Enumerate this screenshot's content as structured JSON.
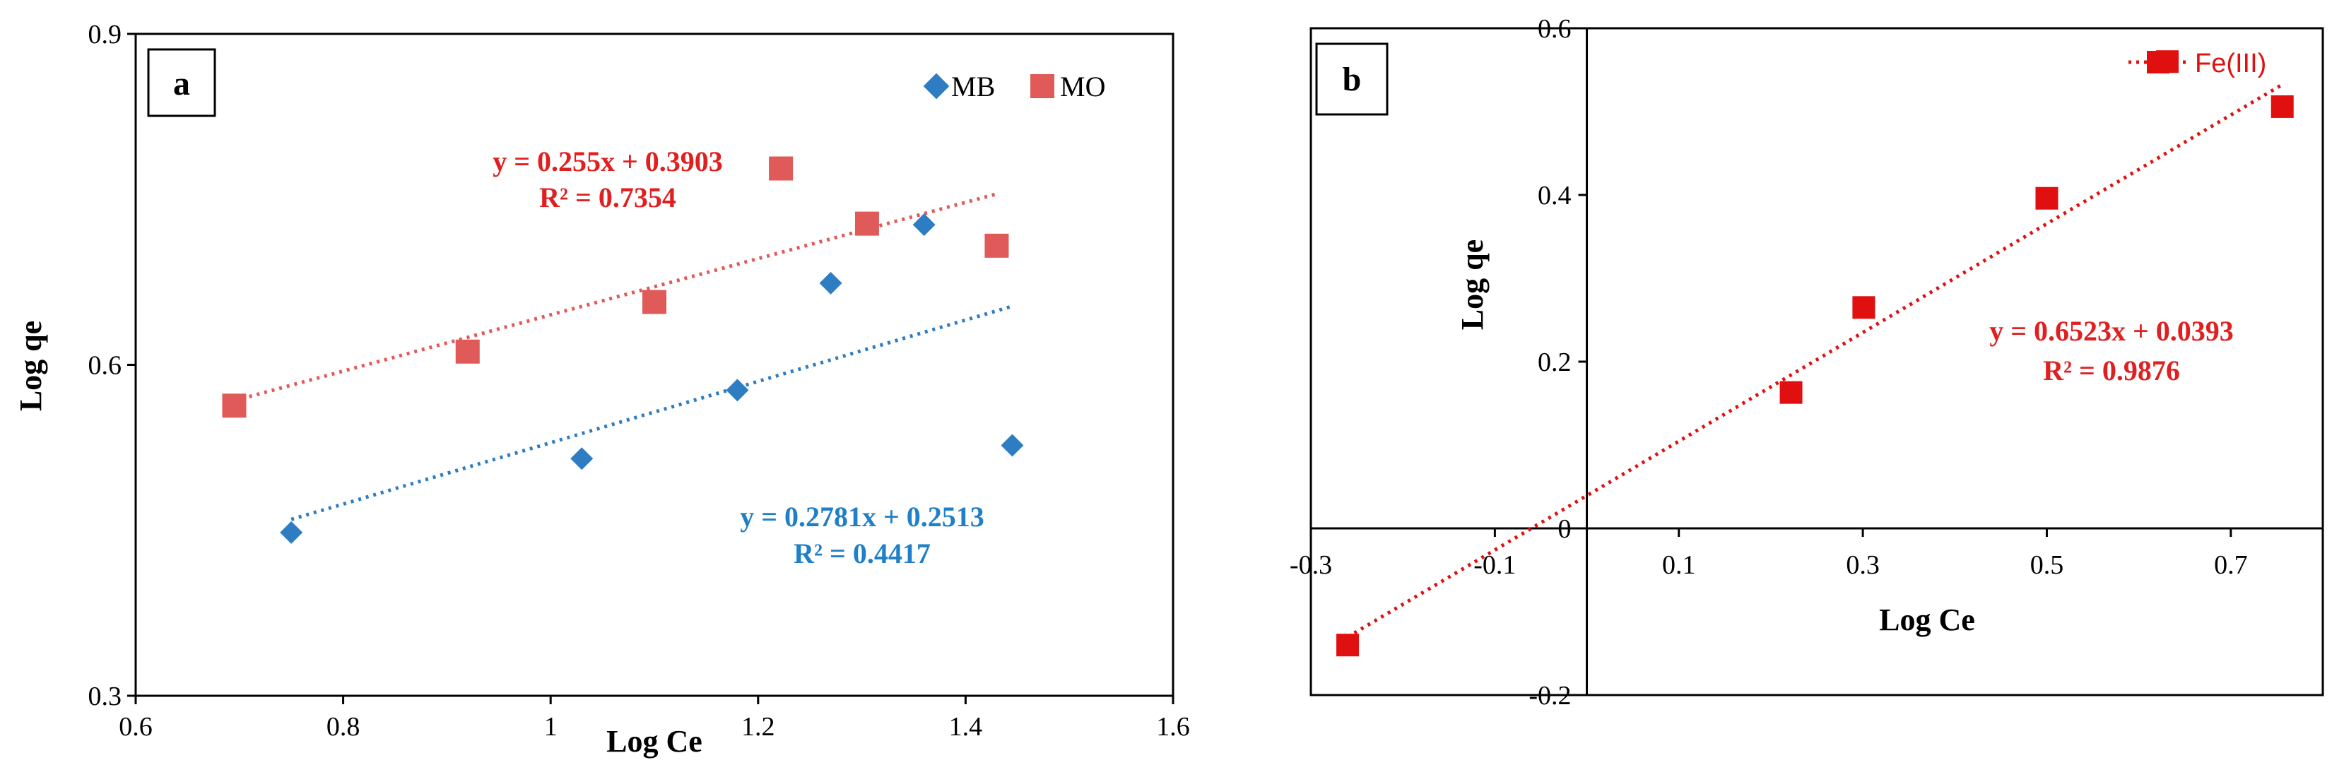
{
  "chart_data": [
    {
      "panel": "a",
      "type": "scatter",
      "xlabel": "Log Ce",
      "ylabel": "Log qe",
      "xlim": [
        0.6,
        1.6
      ],
      "ylim": [
        0.3,
        0.9
      ],
      "xticks": [
        0.6,
        0.8,
        1,
        1.2,
        1.4,
        1.6
      ],
      "xtick_labels": [
        "0.6",
        "0.8",
        "1",
        "1.2",
        "1.4",
        "1.6"
      ],
      "yticks": [
        0.3,
        0.6,
        0.9
      ],
      "ytick_labels": [
        "0.3",
        "0.6",
        "0.9"
      ],
      "legend_position": "top-right",
      "series": [
        {
          "name": "MB",
          "marker": "diamond",
          "color": "#2E7DC2",
          "x": [
            0.75,
            1.03,
            1.18,
            1.27,
            1.36,
            1.445
          ],
          "y": [
            0.448,
            0.515,
            0.577,
            0.674,
            0.727,
            0.527
          ],
          "trend": {
            "slope": 0.2781,
            "intercept": 0.2513,
            "x_range": [
              0.75,
              1.445
            ]
          },
          "equation": "y = 0.2781x + 0.2513",
          "r2": "R² = 0.4417"
        },
        {
          "name": "MO",
          "marker": "square",
          "color": "#E05A5A",
          "x": [
            0.695,
            0.92,
            1.1,
            1.222,
            1.305,
            1.43
          ],
          "y": [
            0.563,
            0.612,
            0.657,
            0.778,
            0.728,
            0.708
          ],
          "trend": {
            "slope": 0.255,
            "intercept": 0.3903,
            "x_range": [
              0.695,
              1.43
            ]
          },
          "equation": "y = 0.255x + 0.3903",
          "r2": "R² = 0.7354"
        }
      ]
    },
    {
      "panel": "b",
      "type": "scatter",
      "xlabel": "Log Ce",
      "ylabel": "Log qe",
      "xlim": [
        -0.3,
        0.8
      ],
      "ylim": [
        -0.2,
        0.6
      ],
      "xticks": [
        -0.3,
        -0.1,
        0.1,
        0.3,
        0.5,
        0.7
      ],
      "xtick_labels": [
        "-0.3",
        "-0.1",
        "0.1",
        "0.3",
        "0.5",
        "0.7"
      ],
      "yticks": [
        -0.2,
        0,
        0.2,
        0.4,
        0.6
      ],
      "ytick_labels": [
        "-0.2",
        "0",
        "0.2",
        "0.4",
        "0.6"
      ],
      "legend_position": "top-right",
      "series": [
        {
          "name": "Fe(III)",
          "marker": "square",
          "color": "#E01010",
          "x": [
            -0.26,
            0.222,
            0.301,
            0.5,
            0.631,
            0.756
          ],
          "y": [
            -0.14,
            0.163,
            0.265,
            0.396,
            0.56,
            0.506
          ],
          "trend": {
            "slope": 0.6523,
            "intercept": 0.0393,
            "x_range": [
              -0.26,
              0.756
            ]
          },
          "equation": "y = 0.6523x + 0.0393",
          "r2": "R² = 0.9876"
        }
      ]
    }
  ]
}
